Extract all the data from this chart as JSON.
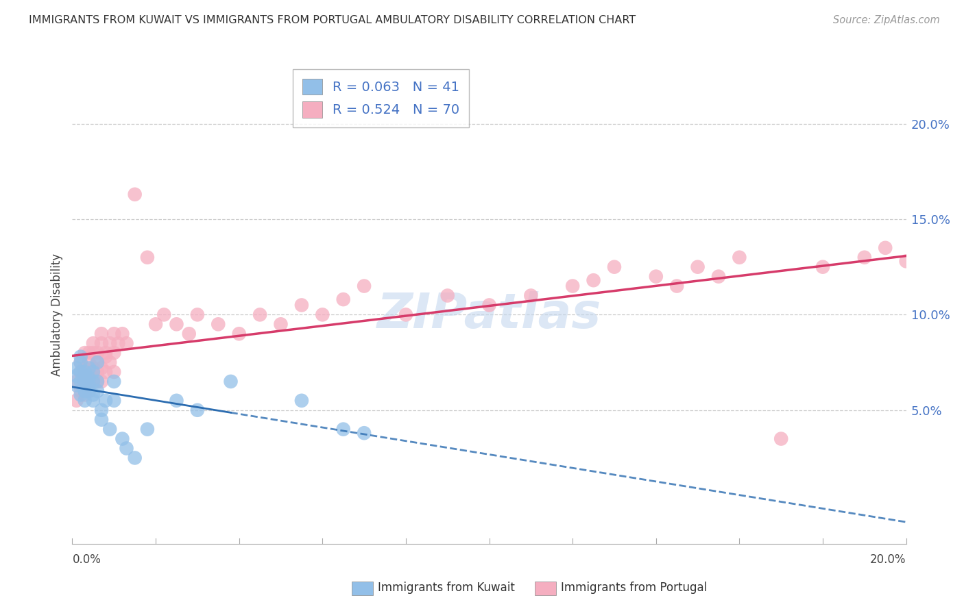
{
  "title": "IMMIGRANTS FROM KUWAIT VS IMMIGRANTS FROM PORTUGAL AMBULATORY DISABILITY CORRELATION CHART",
  "source": "Source: ZipAtlas.com",
  "ylabel": "Ambulatory Disability",
  "kuwait_R": 0.063,
  "kuwait_N": 41,
  "portugal_R": 0.524,
  "portugal_N": 70,
  "kuwait_color": "#92bfe8",
  "portugal_color": "#f5aec0",
  "kuwait_line_color": "#2b6cb0",
  "portugal_line_color": "#d63b6a",
  "background_color": "#ffffff",
  "watermark_color": "#c5d8ef",
  "right_tick_color": "#4472c4",
  "kuwait_x": [
    0.001,
    0.001,
    0.001,
    0.002,
    0.002,
    0.002,
    0.002,
    0.002,
    0.003,
    0.003,
    0.003,
    0.003,
    0.003,
    0.003,
    0.004,
    0.004,
    0.004,
    0.004,
    0.005,
    0.005,
    0.005,
    0.005,
    0.006,
    0.006,
    0.006,
    0.007,
    0.007,
    0.008,
    0.009,
    0.01,
    0.01,
    0.012,
    0.013,
    0.015,
    0.018,
    0.025,
    0.03,
    0.038,
    0.055,
    0.065,
    0.07
  ],
  "kuwait_y": [
    0.063,
    0.068,
    0.072,
    0.065,
    0.07,
    0.075,
    0.078,
    0.058,
    0.06,
    0.065,
    0.07,
    0.055,
    0.06,
    0.068,
    0.063,
    0.072,
    0.06,
    0.067,
    0.065,
    0.058,
    0.055,
    0.07,
    0.065,
    0.075,
    0.06,
    0.05,
    0.045,
    0.055,
    0.04,
    0.065,
    0.055,
    0.035,
    0.03,
    0.025,
    0.04,
    0.055,
    0.05,
    0.065,
    0.055,
    0.04,
    0.038
  ],
  "portugal_x": [
    0.001,
    0.001,
    0.002,
    0.002,
    0.002,
    0.003,
    0.003,
    0.003,
    0.003,
    0.003,
    0.004,
    0.004,
    0.004,
    0.004,
    0.004,
    0.005,
    0.005,
    0.005,
    0.005,
    0.006,
    0.006,
    0.006,
    0.006,
    0.007,
    0.007,
    0.007,
    0.007,
    0.008,
    0.008,
    0.008,
    0.009,
    0.009,
    0.01,
    0.01,
    0.01,
    0.011,
    0.012,
    0.013,
    0.015,
    0.018,
    0.02,
    0.022,
    0.025,
    0.028,
    0.03,
    0.035,
    0.04,
    0.045,
    0.05,
    0.055,
    0.06,
    0.065,
    0.07,
    0.08,
    0.09,
    0.1,
    0.11,
    0.12,
    0.13,
    0.14,
    0.15,
    0.16,
    0.17,
    0.18,
    0.19,
    0.195,
    0.2,
    0.145,
    0.155,
    0.125
  ],
  "portugal_y": [
    0.055,
    0.065,
    0.06,
    0.07,
    0.075,
    0.065,
    0.072,
    0.08,
    0.068,
    0.058,
    0.075,
    0.065,
    0.08,
    0.07,
    0.06,
    0.072,
    0.08,
    0.068,
    0.085,
    0.065,
    0.075,
    0.08,
    0.07,
    0.072,
    0.085,
    0.09,
    0.065,
    0.08,
    0.078,
    0.07,
    0.075,
    0.085,
    0.08,
    0.09,
    0.07,
    0.085,
    0.09,
    0.085,
    0.163,
    0.13,
    0.095,
    0.1,
    0.095,
    0.09,
    0.1,
    0.095,
    0.09,
    0.1,
    0.095,
    0.105,
    0.1,
    0.108,
    0.115,
    0.1,
    0.11,
    0.105,
    0.11,
    0.115,
    0.125,
    0.12,
    0.125,
    0.13,
    0.035,
    0.125,
    0.13,
    0.135,
    0.128,
    0.115,
    0.12,
    0.118
  ],
  "xlim": [
    0,
    0.2
  ],
  "ylim": [
    -0.02,
    0.22
  ],
  "yticks": [
    0.05,
    0.1,
    0.15,
    0.2
  ],
  "ytick_labels": [
    "5.0%",
    "10.0%",
    "15.0%",
    "20.0%"
  ]
}
